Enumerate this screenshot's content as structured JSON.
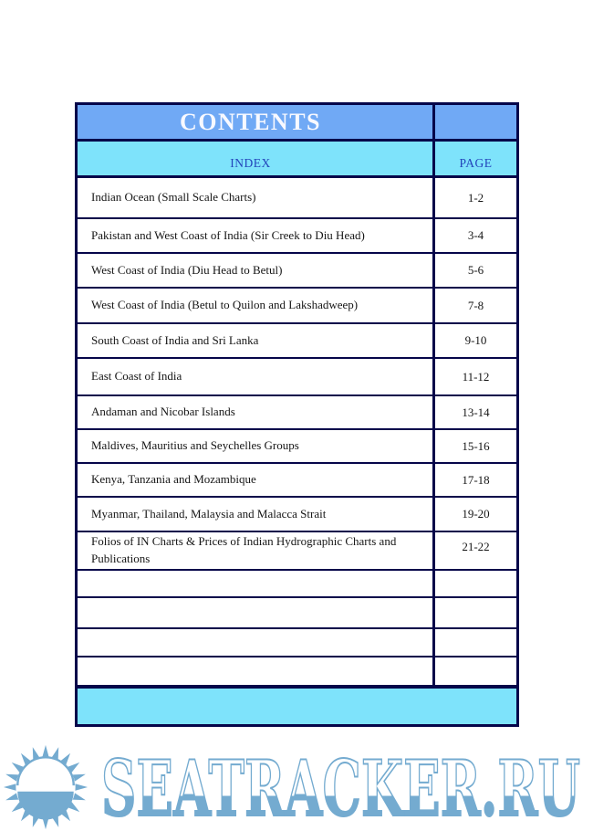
{
  "table": {
    "title": "CONTENTS",
    "columns": {
      "index": "INDEX",
      "page": "PAGE"
    },
    "rows": [
      {
        "index": "Indian Ocean (Small Scale Charts)",
        "page": "1-2"
      },
      {
        "index": "Pakistan and West Coast of India (Sir Creek to Diu Head)",
        "page": "3-4"
      },
      {
        "index": "West Coast of India (Diu Head to Betul)",
        "page": "5-6"
      },
      {
        "index": "West Coast of India  (Betul to Quilon and Lakshadweep)",
        "page": "7-8"
      },
      {
        "index": "South Coast of India and Sri Lanka",
        "page": "9-10"
      },
      {
        "index": "East Coast of India",
        "page": "11-12"
      },
      {
        "index": "Andaman and Nicobar Islands",
        "page": "13-14"
      },
      {
        "index": "Maldives, Mauritius and  Seychelles Groups",
        "page": "15-16"
      },
      {
        "index": "Kenya, Tanzania and Mozambique",
        "page": "17-18"
      },
      {
        "index": "Myanmar, Thailand, Malaysia and Malacca Strait",
        "page": "19-20"
      },
      {
        "index": "Folios of IN Charts & Prices of Indian Hydrographic Charts and Publications",
        "page": "21-22"
      },
      {
        "index": "",
        "page": ""
      },
      {
        "index": "",
        "page": ""
      },
      {
        "index": "",
        "page": ""
      },
      {
        "index": "",
        "page": ""
      }
    ]
  },
  "watermark": {
    "text": "SEATRACKER.RU",
    "icon": "sun-icon"
  },
  "colors": {
    "header_blue": "#70a9f5",
    "light_cyan": "#7ee3fb",
    "border_navy": "#06064a",
    "title_text": "#f8f9ff",
    "column_header_text": "#2345bb",
    "body_text": "#151515",
    "watermark_blue": "#74abd0"
  }
}
